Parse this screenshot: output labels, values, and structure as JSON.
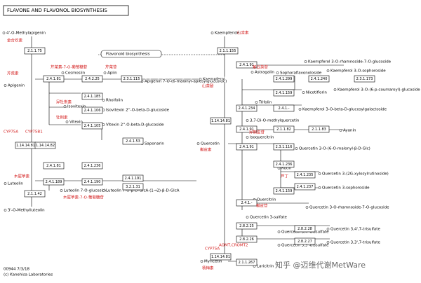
{
  "header": {
    "title": "FLAVONE AND FLAVONOL BIOSYNTHESIS"
  },
  "footer": {
    "map_id": "00944 7/3/18",
    "copyright": "(c) Kanehisa Laboratories"
  },
  "nodes": [
    {
      "label": "4'-O-Methylapigenin"
    },
    {
      "label": "Kaempferide"
    },
    {
      "label": "Flavonoid biosynthesis"
    },
    {
      "label": "Apigenin"
    },
    {
      "label": "Cosmosiin"
    },
    {
      "label": "Apiin"
    },
    {
      "label": "Apigenin 7-O-(6-malonyl-apiosylglucoside)"
    },
    {
      "label": "Kaempferol"
    },
    {
      "label": "Astragalin"
    },
    {
      "label": "Sophoraflavonoloside"
    },
    {
      "label": "Kaempferol 3-O-rhamnoside-7-O-glucoside"
    },
    {
      "label": "Kaempferol 3-O-sophoroside"
    },
    {
      "label": "Kaempferol 3-O-(6-p-coumaroyl)-glucoside"
    },
    {
      "label": "Rhoifolin"
    },
    {
      "label": "Nicotiflorin"
    },
    {
      "label": "Isovitexin"
    },
    {
      "label": "Trifolin"
    },
    {
      "label": "Isovitexin 2''-O-beta-D-glucoside"
    },
    {
      "label": "Kaempferol 3-O-beta-D-glucosylgalactoside"
    },
    {
      "label": "Vitexin"
    },
    {
      "label": "Vitexin 2''-O-beta-D-glucoside"
    },
    {
      "label": "Saponarin"
    },
    {
      "label": "Luteolin"
    },
    {
      "label": "Luteolin 7-O-glucoside"
    },
    {
      "label": "Luteolin 7-O-β-D-GlcA-(1→2)-β-D-GlcA"
    },
    {
      "label": "3'-O-Methylluteolin"
    },
    {
      "label": "3,7-Di-O-methylquercetin"
    },
    {
      "label": "Ayanin"
    },
    {
      "label": "Quercetin"
    },
    {
      "label": "Isoquercitrin"
    },
    {
      "label": "Quercetin 3-O-(6-O-malonyl-β-D-Glc)"
    },
    {
      "label": "Rutin"
    },
    {
      "label": "Quercetin 3-(2G-xylosylrutinoside)"
    },
    {
      "label": "Quercetin 3-sophoroside"
    },
    {
      "label": "Quercitrin"
    },
    {
      "label": "Quercetin 3-O-rhamnoside-7-O-glucoside"
    },
    {
      "label": "Quercetin 3-sulfate"
    },
    {
      "label": "Quercetin 3,4'-bissulfate"
    },
    {
      "label": "Quercetin 3,3'-bissulfate"
    },
    {
      "label": "Quercetin 3,4',7-trisulfate"
    },
    {
      "label": "Quercetin 3,3',7-trisulfate"
    },
    {
      "label": "Myricetin"
    },
    {
      "label": "Laricitrin"
    }
  ],
  "enzymes": [
    {
      "label": "2.1.1.75"
    },
    {
      "label": "2.1.1.155"
    },
    {
      "label": "2.4.1.81"
    },
    {
      "label": "2.4.2.25"
    },
    {
      "label": "2.3.1.115"
    },
    {
      "label": "2.4.1.91"
    },
    {
      "label": "2.4.1.299"
    },
    {
      "label": "2.4.1.240"
    },
    {
      "label": "2.3.1.173"
    },
    {
      "label": "2.4.1.159"
    },
    {
      "label": "2.4.1.234"
    },
    {
      "label": "2.4.1.-"
    },
    {
      "label": "2.4.1.185"
    },
    {
      "label": "2.4.1.106"
    },
    {
      "label": "2.4.1.105"
    },
    {
      "label": "2.4.1.53"
    },
    {
      "label": "1.14.14.81"
    },
    {
      "label": "1.14.14.82"
    },
    {
      "label": "1.14.14.81"
    },
    {
      "label": "2.4.1.81"
    },
    {
      "label": "2.4.1.236"
    },
    {
      "label": "2.4.1.189"
    },
    {
      "label": "2.4.1.190"
    },
    {
      "label": "2.4.1.191"
    },
    {
      "label": "3.2.1.31"
    },
    {
      "label": "2.1.1.42"
    },
    {
      "label": "2.4.1.91"
    },
    {
      "label": "2.1.1.82"
    },
    {
      "label": "2.1.1.83"
    },
    {
      "label": "2.4.1.91"
    },
    {
      "label": "2.3.1.116"
    },
    {
      "label": "2.4.1.236"
    },
    {
      "label": "2.4.1.235"
    },
    {
      "label": "2.4.1.159"
    },
    {
      "label": "2.4.1.237"
    },
    {
      "label": "2.4.1.-"
    },
    {
      "label": "2.8.2.25"
    },
    {
      "label": "2.8.2.26"
    },
    {
      "label": "2.8.2.28"
    },
    {
      "label": "2.8.2.27"
    },
    {
      "label": "1.14.14.81"
    },
    {
      "label": "2.1.1.267"
    }
  ],
  "annotations": [
    {
      "label": "金合欢素"
    },
    {
      "label": "山柰素"
    },
    {
      "label": "芹菜素"
    },
    {
      "label": "山柰酚"
    },
    {
      "label": "木犀草素"
    },
    {
      "label": "槲皮素"
    },
    {
      "label": "杨梅素"
    },
    {
      "label": "芹菜素-7-O-葡萄糖苷"
    },
    {
      "label": "芹菜苷"
    },
    {
      "label": "牡荆素"
    },
    {
      "label": "异牡荆素"
    },
    {
      "label": "芦丁"
    },
    {
      "label": "紫云英苷"
    },
    {
      "label": "槲皮苷"
    },
    {
      "label": "异槲皮苷"
    },
    {
      "label": "木犀草素-7-O-葡萄糖苷"
    },
    {
      "label": "CYP75A"
    },
    {
      "label": "CYP75B1"
    },
    {
      "label": "CYP75A"
    },
    {
      "label": "AOMT,CROMT2"
    }
  ],
  "watermark": "知乎 @迈维代谢MetWare"
}
